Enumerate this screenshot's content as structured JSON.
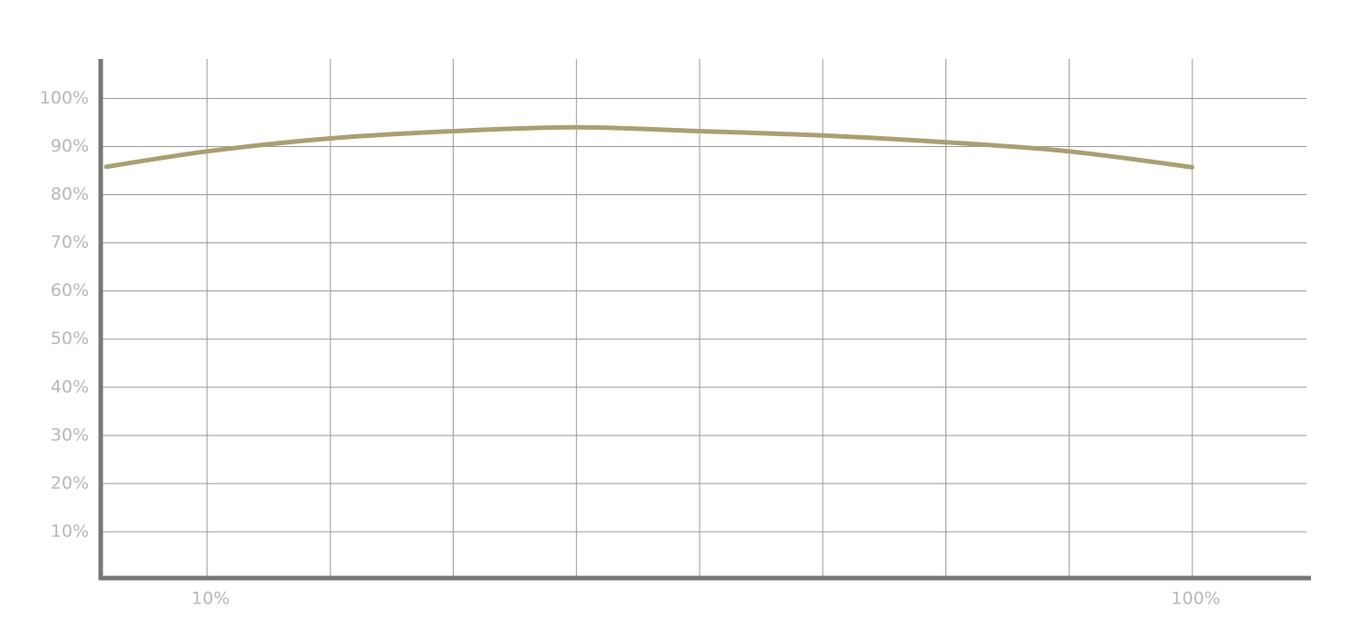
{
  "chart_data": {
    "type": "line",
    "xscale": "log",
    "grid": true,
    "x": [
      7.9,
      10,
      13.34,
      17.78,
      23.71,
      31.62,
      42.17,
      56.23,
      74.99,
      100
    ],
    "series": [
      {
        "color": "#a9a071",
        "values": [
          85.8,
          89,
          91.7,
          93.2,
          94,
          93.2,
          92.3,
          90.9,
          89,
          85.7
        ]
      }
    ],
    "xlim": [
      7.8,
      130.6
    ],
    "xticks": [
      {
        "value": 10,
        "label": "10%"
      },
      {
        "value": 100,
        "label": "100%"
      }
    ],
    "xgrid": [
      10,
      13.34,
      17.78,
      23.71,
      31.62,
      42.17,
      56.23,
      74.99,
      100
    ],
    "ylim": [
      0,
      108
    ],
    "yticks": [
      {
        "value": 10,
        "label": "10%"
      },
      {
        "value": 20,
        "label": "20%"
      },
      {
        "value": 30,
        "label": "30%"
      },
      {
        "value": 40,
        "label": "40%"
      },
      {
        "value": 50,
        "label": "50%"
      },
      {
        "value": 60,
        "label": "60%"
      },
      {
        "value": 70,
        "label": "70%"
      },
      {
        "value": 80,
        "label": "80%"
      },
      {
        "value": 90,
        "label": "90%"
      },
      {
        "value": 100,
        "label": "100%"
      }
    ]
  }
}
